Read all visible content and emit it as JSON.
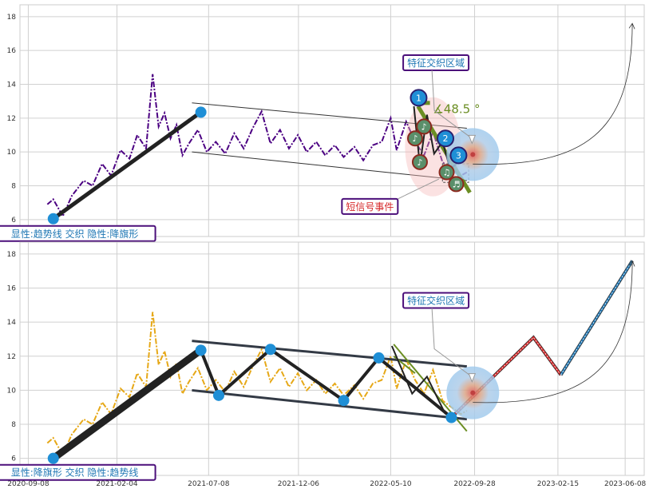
{
  "chart_data": [
    {
      "type": "line",
      "ylim": [
        5,
        18.7
      ],
      "yticks": [
        6,
        8,
        10,
        12,
        14,
        16,
        18
      ],
      "xlim": [
        "2020-08-25",
        "2023-07-10"
      ],
      "grid": true,
      "series": [
        {
          "style": "dashdot",
          "color": "#4b0082",
          "points": [
            [
              "2020-10-10",
              6.9
            ],
            [
              "2020-10-20",
              7.2
            ],
            [
              "2020-11-05",
              6.2
            ],
            [
              "2020-11-20",
              7.4
            ],
            [
              "2020-12-10",
              8.3
            ],
            [
              "2020-12-25",
              8.0
            ],
            [
              "2021-01-10",
              9.3
            ],
            [
              "2021-01-25",
              8.6
            ],
            [
              "2021-02-10",
              10.1
            ],
            [
              "2021-02-25",
              9.6
            ],
            [
              "2021-03-10",
              11.0
            ],
            [
              "2021-03-25",
              10.2
            ],
            [
              "2021-04-05",
              14.6
            ],
            [
              "2021-04-15",
              11.5
            ],
            [
              "2021-04-25",
              12.3
            ],
            [
              "2021-05-05",
              10.8
            ],
            [
              "2021-05-15",
              11.6
            ],
            [
              "2021-05-25",
              9.8
            ],
            [
              "2021-06-05",
              10.5
            ],
            [
              "2021-06-20",
              11.3
            ],
            [
              "2021-07-05",
              10.0
            ],
            [
              "2021-07-20",
              10.6
            ],
            [
              "2021-08-05",
              9.9
            ],
            [
              "2021-08-20",
              11.1
            ],
            [
              "2021-09-05",
              10.2
            ],
            [
              "2021-09-20",
              11.4
            ],
            [
              "2021-10-05",
              12.4
            ],
            [
              "2021-10-20",
              10.5
            ],
            [
              "2021-11-05",
              11.3
            ],
            [
              "2021-11-20",
              10.2
            ],
            [
              "2021-12-05",
              11.0
            ],
            [
              "2021-12-20",
              10.0
            ],
            [
              "2022-01-05",
              10.6
            ],
            [
              "2022-01-20",
              9.8
            ],
            [
              "2022-02-05",
              10.4
            ],
            [
              "2022-02-20",
              9.7
            ],
            [
              "2022-03-10",
              10.3
            ],
            [
              "2022-03-25",
              9.5
            ],
            [
              "2022-04-10",
              10.4
            ],
            [
              "2022-04-25",
              10.6
            ],
            [
              "2022-05-10",
              12.0
            ],
            [
              "2022-05-20",
              10.1
            ],
            [
              "2022-06-05",
              11.8
            ],
            [
              "2022-06-20",
              10.6
            ],
            [
              "2022-07-05",
              9.8
            ],
            [
              "2022-07-20",
              11.2
            ],
            [
              "2022-08-05",
              9.4
            ],
            [
              "2022-08-20",
              9.0
            ],
            [
              "2022-09-05",
              8.6
            ],
            [
              "2022-09-15",
              8.8
            ]
          ]
        },
        {
          "style": "solid-thick",
          "color": "#222222",
          "points": [
            [
              "2020-10-20",
              6.05
            ],
            [
              "2021-06-25",
              12.35
            ]
          ]
        }
      ],
      "channel": {
        "upper": [
          [
            "2021-06-10",
            12.9
          ],
          [
            "2022-09-15",
            11.4
          ]
        ],
        "lower": [
          [
            "2021-06-10",
            10.0
          ],
          [
            "2022-09-15",
            8.3
          ]
        ]
      },
      "pattern": {
        "lines": [
          {
            "color": "#6b8e23",
            "points": [
              [
                "2022-06-25",
                12.7
              ],
              [
                "2022-09-20",
                7.6
              ]
            ]
          },
          {
            "color": "#6b8e23",
            "points": [
              [
                "2022-06-25",
                12.9
              ],
              [
                "2022-07-15",
                12.9
              ]
            ]
          },
          {
            "color": "#222222",
            "points": [
              [
                "2022-06-18",
                12.7
              ],
              [
                "2022-06-28",
                9.2
              ],
              [
                "2022-07-10",
                12.2
              ],
              [
                "2022-07-22",
                9.9
              ],
              [
                "2022-08-05",
                10.6
              ],
              [
                "2022-08-18",
                9.0
              ],
              [
                "2022-09-05",
                9.5
              ]
            ]
          }
        ],
        "markers": [
          {
            "label": "1",
            "kind": "blue",
            "at": [
              "2022-06-26",
              13.2
            ]
          },
          {
            "label": "2",
            "kind": "blue",
            "at": [
              "2022-08-10",
              10.8
            ]
          },
          {
            "label": "3",
            "kind": "blue",
            "at": [
              "2022-09-01",
              9.8
            ]
          },
          {
            "label": "♪",
            "kind": "note",
            "at": [
              "2022-07-05",
              11.5
            ]
          },
          {
            "label": "♪",
            "kind": "note",
            "at": [
              "2022-06-20",
              10.8
            ]
          },
          {
            "label": "♪",
            "kind": "note",
            "at": [
              "2022-06-28",
              9.4
            ]
          },
          {
            "label": "♫",
            "kind": "note",
            "at": [
              "2022-08-12",
              8.8
            ]
          },
          {
            "label": "♬",
            "kind": "note",
            "at": [
              "2022-08-28",
              8.1
            ]
          }
        ],
        "angle_label": "∡48.5 °"
      },
      "pivots": [
        [
          "2020-10-20",
          6.05
        ],
        [
          "2021-06-25",
          12.35
        ]
      ],
      "target": [
        "2022-09-25",
        9.85
      ],
      "projection": [
        [
          "2022-09-25",
          9.85
        ],
        [
          "2023-06-20",
          17.6
        ]
      ],
      "annotations": [
        {
          "text": "特征交织区域",
          "color": "#1f77b4",
          "at": [
            "2022-07-25",
            15.3
          ]
        },
        {
          "text": "短信号事件",
          "color": "#d62728",
          "at": [
            "2022-04-05",
            6.8
          ]
        },
        {
          "text": "显性:趋势线 交织 隐性:降旗形",
          "color": "#1f77b4",
          "at": [
            "2020-11-25",
            5.2
          ]
        }
      ]
    },
    {
      "type": "line",
      "ylim": [
        5,
        18.7
      ],
      "yticks": [
        6,
        8,
        10,
        12,
        14,
        16,
        18
      ],
      "xlim": [
        "2020-08-25",
        "2023-07-10"
      ],
      "grid": true,
      "series": [
        {
          "style": "dashdot",
          "color": "#e6a817",
          "points": [
            [
              "2020-10-10",
              6.9
            ],
            [
              "2020-10-20",
              7.2
            ],
            [
              "2020-11-05",
              6.2
            ],
            [
              "2020-11-20",
              7.4
            ],
            [
              "2020-12-10",
              8.3
            ],
            [
              "2020-12-25",
              8.0
            ],
            [
              "2021-01-10",
              9.3
            ],
            [
              "2021-01-25",
              8.6
            ],
            [
              "2021-02-10",
              10.1
            ],
            [
              "2021-02-25",
              9.6
            ],
            [
              "2021-03-10",
              11.0
            ],
            [
              "2021-03-25",
              10.2
            ],
            [
              "2021-04-05",
              14.6
            ],
            [
              "2021-04-15",
              11.5
            ],
            [
              "2021-04-25",
              12.3
            ],
            [
              "2021-05-05",
              10.8
            ],
            [
              "2021-05-15",
              11.6
            ],
            [
              "2021-05-25",
              9.8
            ],
            [
              "2021-06-05",
              10.5
            ],
            [
              "2021-06-20",
              11.3
            ],
            [
              "2021-07-05",
              10.0
            ],
            [
              "2021-07-20",
              10.6
            ],
            [
              "2021-08-05",
              9.9
            ],
            [
              "2021-08-20",
              11.1
            ],
            [
              "2021-09-05",
              10.2
            ],
            [
              "2021-09-20",
              11.4
            ],
            [
              "2021-10-05",
              12.4
            ],
            [
              "2021-10-20",
              10.5
            ],
            [
              "2021-11-05",
              11.3
            ],
            [
              "2021-11-20",
              10.2
            ],
            [
              "2021-12-05",
              11.0
            ],
            [
              "2021-12-20",
              10.0
            ],
            [
              "2022-01-05",
              10.6
            ],
            [
              "2022-01-20",
              9.8
            ],
            [
              "2022-02-05",
              10.4
            ],
            [
              "2022-02-20",
              9.7
            ],
            [
              "2022-03-10",
              10.3
            ],
            [
              "2022-03-25",
              9.5
            ],
            [
              "2022-04-10",
              10.4
            ],
            [
              "2022-04-25",
              10.6
            ],
            [
              "2022-05-10",
              12.0
            ],
            [
              "2022-05-20",
              10.1
            ],
            [
              "2022-06-05",
              11.8
            ],
            [
              "2022-06-20",
              10.6
            ],
            [
              "2022-07-05",
              9.8
            ],
            [
              "2022-07-20",
              11.2
            ],
            [
              "2022-08-05",
              9.4
            ],
            [
              "2022-08-20",
              9.0
            ],
            [
              "2022-09-05",
              8.6
            ],
            [
              "2022-09-15",
              8.8
            ]
          ]
        },
        {
          "style": "solid-thick",
          "color": "#222222",
          "points": [
            [
              "2020-10-20",
              6.0
            ],
            [
              "2021-06-25",
              12.35
            ]
          ]
        }
      ],
      "channel": {
        "upper": [
          [
            "2021-06-10",
            12.9
          ],
          [
            "2022-09-15",
            11.4
          ]
        ],
        "lower": [
          [
            "2021-06-10",
            10.0
          ],
          [
            "2022-09-15",
            8.3
          ]
        ]
      },
      "zigzag": [
        [
          "2021-06-25",
          12.35
        ],
        [
          "2021-07-25",
          9.7
        ],
        [
          "2021-10-20",
          12.4
        ],
        [
          "2022-02-20",
          9.4
        ],
        [
          "2022-04-20",
          11.9
        ],
        [
          "2022-08-20",
          8.4
        ]
      ],
      "pattern": {
        "lines": [
          {
            "color": "#6b8e23",
            "points": [
              [
                "2022-05-15",
                12.7
              ],
              [
                "2022-09-15",
                7.6
              ]
            ]
          },
          {
            "color": "#6b8e23",
            "points": [
              [
                "2022-05-15",
                12.0
              ],
              [
                "2022-06-20",
                11.0
              ]
            ]
          },
          {
            "color": "#222222",
            "points": [
              [
                "2022-05-12",
                12.6
              ],
              [
                "2022-06-15",
                9.8
              ],
              [
                "2022-07-10",
                10.8
              ],
              [
                "2022-08-10",
                8.6
              ]
            ]
          }
        ]
      },
      "forecast": [
        {
          "color": "#d62728",
          "points": [
            [
              "2022-08-20",
              8.4
            ],
            [
              "2023-01-05",
              13.1
            ],
            [
              "2023-02-20",
              10.9
            ]
          ]
        },
        {
          "color": "#1f77b4",
          "points": [
            [
              "2023-02-20",
              10.9
            ],
            [
              "2023-06-20",
              17.6
            ]
          ]
        }
      ],
      "pivots": [
        [
          "2020-10-20",
          6.0
        ],
        [
          "2021-06-25",
          12.35
        ],
        [
          "2021-07-25",
          9.7
        ],
        [
          "2021-10-20",
          12.4
        ],
        [
          "2022-02-20",
          9.4
        ],
        [
          "2022-04-20",
          11.9
        ],
        [
          "2022-08-20",
          8.4
        ]
      ],
      "target": [
        "2022-09-25",
        9.85
      ],
      "projection": [
        [
          "2022-09-25",
          9.85
        ],
        [
          "2023-06-20",
          17.6
        ]
      ],
      "xticks": [
        "2020-09-08",
        "2021-02-04",
        "2021-07-08",
        "2021-12-06",
        "2022-05-10",
        "2022-09-28",
        "2023-02-15",
        "2023-06-08"
      ],
      "annotations": [
        {
          "text": "特征交织区域",
          "color": "#1f77b4",
          "at": [
            "2022-07-25",
            15.3
          ]
        },
        {
          "text": "显性:降旗形 交织 隐性:趋势线",
          "color": "#1f77b4",
          "at": [
            "2020-11-25",
            5.2
          ]
        }
      ]
    }
  ]
}
